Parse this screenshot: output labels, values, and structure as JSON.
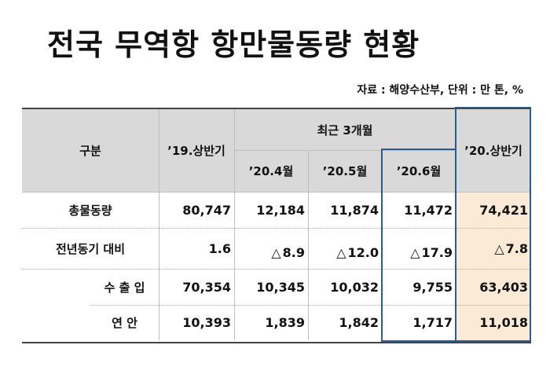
{
  "title": "전국 무역항 항만물동량 현황",
  "source_note": "자료 : 해양수산부, 단위 : 만 톤, %",
  "header": {
    "category": "구분",
    "h1_2019": "’19.상반기",
    "recent_group": "최근 3개월",
    "apr": "’20.4월",
    "may": "’20.5월",
    "jun": "’20.6월",
    "h1_2020": "’20.상반기"
  },
  "rows": [
    {
      "label": "총물동량",
      "v2019": "80,747",
      "apr": "12,184",
      "may": "11,874",
      "jun": "11,472",
      "v2020": "74,421"
    },
    {
      "label": "전년동기 대비",
      "v2019": "1.6",
      "apr": "8.9",
      "may": "12.0",
      "jun": "17.9",
      "v2020": "7.8",
      "decrease_marker": "△"
    },
    {
      "label": "수 출 입",
      "v2019": "70,354",
      "apr": "10,345",
      "may": "10,032",
      "jun": "9,755",
      "v2020": "63,403"
    },
    {
      "label": "연 안",
      "v2019": "10,393",
      "apr": "1,839",
      "may": "1,842",
      "jun": "1,717",
      "v2020": "11,018"
    }
  ],
  "colors": {
    "header_bg": "#d9d9d9",
    "highlight_bg": "#fbebd6",
    "highlight_border": "#2e5b8f"
  }
}
